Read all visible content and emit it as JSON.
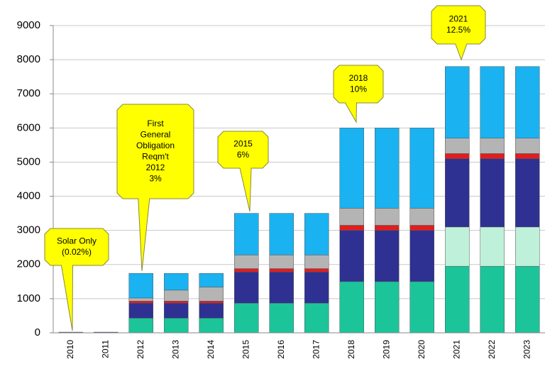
{
  "chart_data": {
    "type": "stacked_bar",
    "categories": [
      "2010",
      "2011",
      "2012",
      "2013",
      "2014",
      "2015",
      "2016",
      "2017",
      "2018",
      "2019",
      "2020",
      "2021",
      "2022",
      "2023"
    ],
    "series": [
      {
        "color": "#1cc49a",
        "values": [
          0,
          0,
          430,
          430,
          430,
          870,
          870,
          870,
          1500,
          1500,
          1500,
          1950,
          1950,
          1950
        ]
      },
      {
        "color": "#bff0da",
        "values": [
          0,
          0,
          0,
          0,
          0,
          0,
          0,
          0,
          0,
          0,
          0,
          1150,
          1150,
          1150
        ]
      },
      {
        "color": "#2e3192",
        "values": [
          20,
          20,
          440,
          440,
          440,
          910,
          910,
          910,
          1500,
          1500,
          1500,
          2000,
          2000,
          2000
        ]
      },
      {
        "color": "#e01e1e",
        "values": [
          0,
          0,
          60,
          60,
          60,
          100,
          100,
          100,
          150,
          150,
          150,
          150,
          150,
          150
        ]
      },
      {
        "color": "#b4b4b4",
        "values": [
          0,
          0,
          90,
          320,
          410,
          400,
          400,
          400,
          500,
          500,
          500,
          450,
          450,
          450
        ]
      },
      {
        "color": "#1ab2f0",
        "values": [
          0,
          0,
          720,
          490,
          400,
          1220,
          1220,
          1220,
          2350,
          2350,
          2350,
          2100,
          2100,
          2100
        ]
      }
    ],
    "ylim": [
      0,
      9000
    ],
    "yticks": [
      0,
      1000,
      2000,
      3000,
      4000,
      5000,
      6000,
      7000,
      8000,
      9000
    ],
    "grid": true,
    "annotations": [
      {
        "lines": [
          "Solar Only",
          "(0.02%)"
        ]
      },
      {
        "lines": [
          "First",
          "General",
          "Obligation",
          "Reqm't",
          "2012",
          "3%"
        ]
      },
      {
        "lines": [
          "2015",
          "6%"
        ]
      },
      {
        "lines": [
          "2018",
          "10%"
        ]
      },
      {
        "lines": [
          "2021",
          "12.5%"
        ]
      }
    ]
  }
}
